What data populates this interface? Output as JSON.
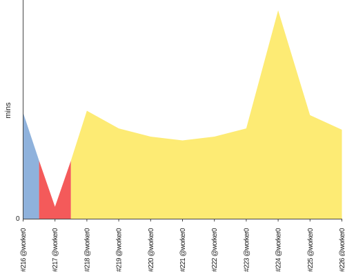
{
  "chart_data": {
    "type": "area",
    "ylabel": "mins",
    "y_tick_labels": [
      "0"
    ],
    "ylim": [
      0,
      33
    ],
    "categories": [
      "#216 @worker0",
      "#217 @worker0",
      "#218 @worker0",
      "#219 @worker0",
      "#220 @worker0",
      "#221 @worker0",
      "#222 @worker0",
      "#223 @worker0",
      "#224 @worker0",
      "#225 @worker0",
      "#226 @worker0"
    ],
    "series": [
      {
        "color": "#8fb2dc",
        "points": [
          {
            "x": 0,
            "y": 16.8
          },
          {
            "x": 0.5,
            "y": 9.2
          }
        ]
      },
      {
        "color": "#f45a5a",
        "points": [
          {
            "x": 0.5,
            "y": 9.2
          },
          {
            "x": 1,
            "y": 1.9
          },
          {
            "x": 1.5,
            "y": 9.2
          }
        ]
      },
      {
        "color": "#fdeb74",
        "points": [
          {
            "x": 1.5,
            "y": 9.2
          },
          {
            "x": 2,
            "y": 17.1
          },
          {
            "x": 3,
            "y": 14.3
          },
          {
            "x": 4,
            "y": 13.0
          },
          {
            "x": 5,
            "y": 12.4
          },
          {
            "x": 6,
            "y": 13.0
          },
          {
            "x": 7,
            "y": 14.3
          },
          {
            "x": 8,
            "y": 33.0
          },
          {
            "x": 9,
            "y": 16.4
          },
          {
            "x": 10,
            "y": 14.1
          }
        ]
      }
    ]
  }
}
